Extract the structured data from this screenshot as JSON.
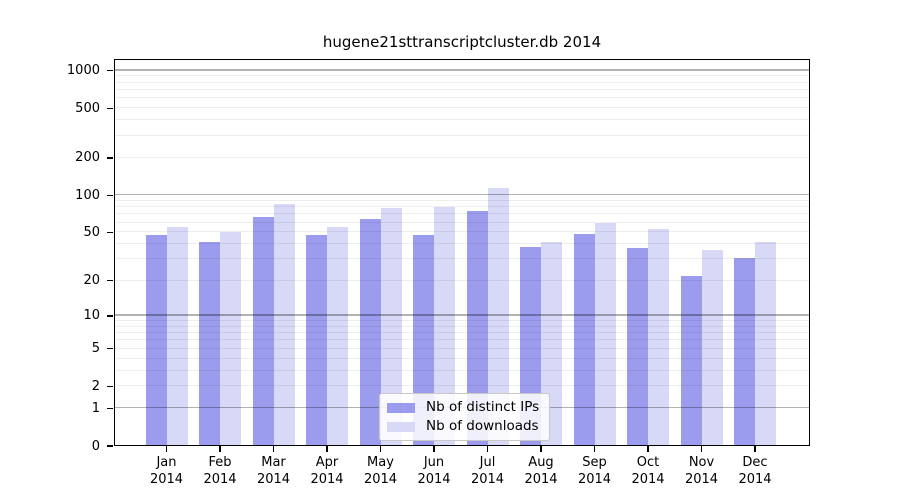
{
  "title": "hugene21sttranscriptcluster.db 2014",
  "chart_data": {
    "type": "bar",
    "title": "hugene21sttranscriptcluster.db 2014",
    "xlabel": "",
    "ylabel": "",
    "year": "2014",
    "categories": [
      "Jan",
      "Feb",
      "Mar",
      "Apr",
      "May",
      "Jun",
      "Jul",
      "Aug",
      "Sep",
      "Oct",
      "Nov",
      "Dec"
    ],
    "series": [
      {
        "name": "Nb of distinct IPs",
        "color": "#9c9cee",
        "values": [
          48,
          42,
          67,
          48,
          64,
          48,
          74,
          38,
          49,
          37,
          22,
          31
        ]
      },
      {
        "name": "Nb of downloads",
        "color": "#d8d8f7",
        "values": [
          55,
          50,
          85,
          55,
          79,
          80,
          114,
          42,
          60,
          53,
          36,
          42
        ]
      }
    ],
    "y_scale": "log10(value+1)",
    "y_ticks": [
      0,
      1,
      2,
      5,
      10,
      20,
      50,
      100,
      200,
      500,
      1000
    ],
    "y_minor_gridlines": [
      2,
      3,
      4,
      5,
      6,
      7,
      8,
      9,
      20,
      30,
      40,
      50,
      60,
      70,
      80,
      90,
      200,
      300,
      400,
      500,
      600,
      700,
      800,
      900
    ],
    "y_major_gridlines": [
      1,
      10,
      100,
      1000
    ],
    "y_axis_top_value": 1240,
    "grid": true,
    "legend_position": "bottom-center",
    "colors": {
      "distinct_ips_bar": "#9c9cee",
      "downloads_bar": "#d8d8f7",
      "frame": "#000000",
      "legend_border": "#c8c8c8"
    }
  },
  "legend": {
    "items": [
      {
        "label": "Nb of distinct IPs"
      },
      {
        "label": "Nb of downloads"
      }
    ]
  }
}
